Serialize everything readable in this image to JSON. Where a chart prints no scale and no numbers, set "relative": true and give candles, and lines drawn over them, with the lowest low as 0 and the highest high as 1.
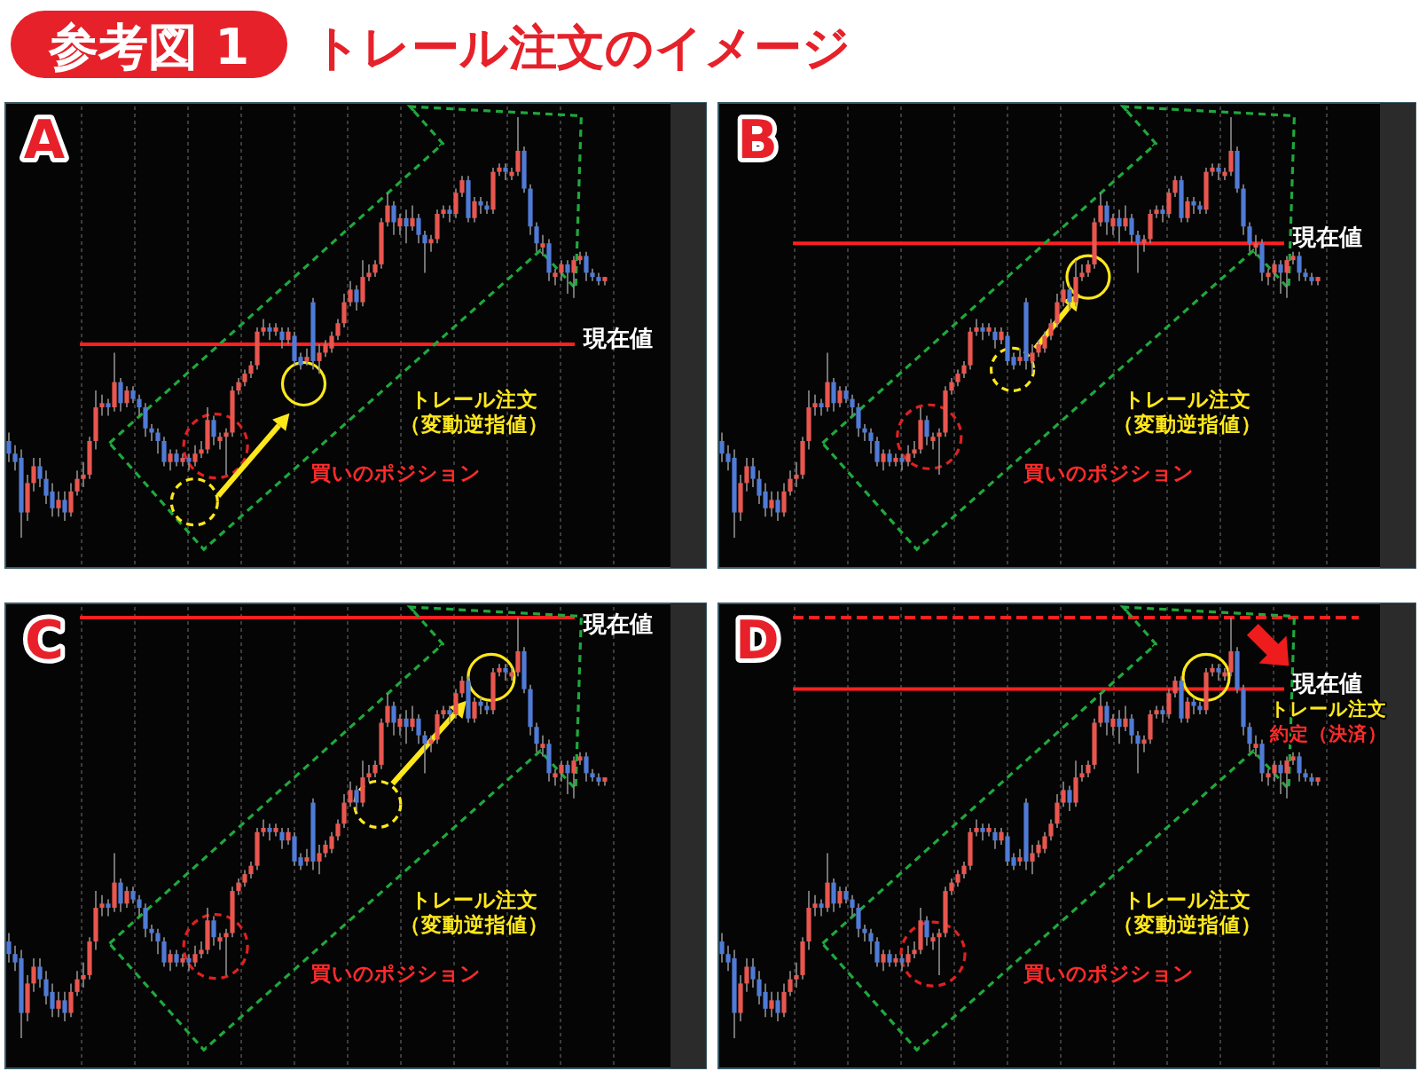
{
  "chart_data": [
    {
      "type": "candlestick",
      "title": "参考図 1",
      "subtitle": "トレール注文のイメージ",
      "relative": true,
      "categories": [
        null,
        null,
        null,
        null,
        null,
        null,
        null,
        null,
        null,
        null,
        null,
        null,
        null,
        null,
        null,
        null,
        null,
        null,
        null,
        null,
        null,
        null,
        null,
        null,
        null,
        null,
        null,
        null,
        null,
        null,
        null,
        null,
        null,
        null,
        null,
        null,
        null,
        null,
        null,
        null,
        null,
        null,
        null,
        null,
        null,
        null,
        null,
        null,
        null,
        null,
        null,
        null,
        null,
        null,
        null,
        null,
        null,
        null,
        null,
        null,
        null,
        null,
        null,
        null,
        null,
        null,
        null,
        null,
        null,
        null,
        null,
        null,
        null,
        null,
        null,
        null,
        null,
        null,
        null,
        null,
        null,
        null,
        null,
        null,
        null,
        null,
        null,
        null,
        null,
        null,
        null,
        null,
        null,
        null,
        null,
        null,
        null
      ],
      "ohlc": [
        [
          0.23,
          0.25,
          0.18,
          0.2
        ],
        [
          0.2,
          0.22,
          0.16,
          0.18
        ],
        [
          0.19,
          0.21,
          0,
          0.06
        ],
        [
          0.06,
          0.15,
          0.04,
          0.13
        ],
        [
          0.13,
          0.19,
          0.11,
          0.17
        ],
        [
          0.17,
          0.19,
          0.12,
          0.14
        ],
        [
          0.14,
          0.16,
          0.08,
          0.1
        ],
        [
          0.11,
          0.13,
          0.05,
          0.07
        ],
        [
          0.07,
          0.11,
          0.05,
          0.09
        ],
        [
          0.09,
          0.11,
          0.04,
          0.06
        ],
        [
          0.06,
          0.13,
          0.05,
          0.11
        ],
        [
          0.11,
          0.16,
          0.1,
          0.14
        ],
        [
          0.14,
          0.18,
          0.12,
          0.15
        ],
        [
          0.15,
          0.24,
          0.14,
          0.23
        ],
        [
          0.23,
          0.35,
          0.21,
          0.31
        ],
        [
          0.31,
          0.34,
          0.29,
          0.32
        ],
        [
          0.32,
          0.33,
          0.29,
          0.31
        ],
        [
          0.31,
          0.44,
          0.3,
          0.37
        ],
        [
          0.37,
          0.38,
          0.3,
          0.32
        ],
        [
          0.32,
          0.36,
          0.31,
          0.35
        ],
        [
          0.35,
          0.36,
          0.32,
          0.33
        ],
        [
          0.33,
          0.34,
          0.29,
          0.31
        ],
        [
          0.31,
          0.32,
          0.24,
          0.26
        ],
        [
          0.26,
          0.27,
          0.23,
          0.25
        ],
        [
          0.25,
          0.26,
          0.2,
          0.23
        ],
        [
          0.23,
          0.24,
          0.17,
          0.18
        ],
        [
          0.18,
          0.21,
          0.16,
          0.2
        ],
        [
          0.2,
          0.21,
          0.17,
          0.18
        ],
        [
          0.18,
          0.2,
          0.17,
          0.19
        ],
        [
          0.19,
          0.2,
          0.16,
          0.18
        ],
        [
          0.18,
          0.22,
          0.17,
          0.2
        ],
        [
          0.2,
          0.23,
          0.19,
          0.21
        ],
        [
          0.21,
          0.31,
          0.2,
          0.28
        ],
        [
          0.28,
          0.29,
          0.22,
          0.24
        ],
        [
          0.23,
          0.25,
          0.21,
          0.24
        ],
        [
          0.24,
          0.26,
          0.15,
          0.25
        ],
        [
          0.25,
          0.36,
          0.24,
          0.35
        ],
        [
          0.35,
          0.38,
          0.34,
          0.37
        ],
        [
          0.37,
          0.4,
          0.36,
          0.39
        ],
        [
          0.39,
          0.42,
          0.38,
          0.41
        ],
        [
          0.41,
          0.5,
          0.4,
          0.49
        ],
        [
          0.49,
          0.52,
          0.48,
          0.5
        ],
        [
          0.5,
          0.51,
          0.47,
          0.49
        ],
        [
          0.49,
          0.51,
          0.48,
          0.5
        ],
        [
          0.49,
          0.5,
          0.45,
          0.47
        ],
        [
          0.47,
          0.5,
          0.46,
          0.49
        ],
        [
          0.48,
          0.49,
          0.41,
          0.42
        ],
        [
          0.43,
          0.44,
          0.4,
          0.41
        ],
        [
          0.42,
          0.45,
          0.41,
          0.43
        ],
        [
          0.56,
          0.57,
          0.4,
          0.42
        ],
        [
          0.42,
          0.46,
          0.39,
          0.44
        ],
        [
          0.44,
          0.47,
          0.43,
          0.46
        ],
        [
          0.45,
          0.49,
          0.44,
          0.48
        ],
        [
          0.48,
          0.52,
          0.47,
          0.51
        ],
        [
          0.51,
          0.58,
          0.5,
          0.56
        ],
        [
          0.56,
          0.61,
          0.55,
          0.59
        ],
        [
          0.59,
          0.6,
          0.54,
          0.56
        ],
        [
          0.56,
          0.66,
          0.55,
          0.62
        ],
        [
          0.62,
          0.65,
          0.61,
          0.63
        ],
        [
          0.63,
          0.66,
          0.62,
          0.65
        ],
        [
          0.65,
          0.76,
          0.64,
          0.75
        ],
        [
          0.75,
          0.82,
          0.74,
          0.79
        ],
        [
          0.79,
          0.8,
          0.72,
          0.75
        ],
        [
          0.74,
          0.77,
          0.72,
          0.76
        ],
        [
          0.76,
          0.78,
          0.7,
          0.74
        ],
        [
          0.74,
          0.79,
          0.73,
          0.76
        ],
        [
          0.76,
          0.77,
          0.7,
          0.72
        ],
        [
          0.72,
          0.73,
          0.63,
          0.7
        ],
        [
          0.7,
          0.72,
          0.68,
          0.71
        ],
        [
          0.71,
          0.78,
          0.7,
          0.77
        ],
        [
          0.77,
          0.79,
          0.76,
          0.78
        ],
        [
          0.78,
          0.79,
          0.75,
          0.77
        ],
        [
          0.77,
          0.83,
          0.76,
          0.82
        ],
        [
          0.82,
          0.86,
          0.81,
          0.85
        ],
        [
          0.85,
          0.86,
          0.75,
          0.76
        ],
        [
          0.76,
          0.81,
          0.75,
          0.8
        ],
        [
          0.8,
          0.81,
          0.77,
          0.79
        ],
        [
          0.79,
          0.8,
          0.77,
          0.78
        ],
        [
          0.78,
          0.88,
          0.77,
          0.87
        ],
        [
          0.87,
          0.89,
          0.86,
          0.88
        ],
        [
          0.88,
          0.89,
          0.85,
          0.87
        ],
        [
          0.86,
          0.88,
          0.85,
          0.87
        ],
        [
          0.87,
          1,
          0.86,
          0.92
        ],
        [
          0.92,
          0.93,
          0.82,
          0.83
        ],
        [
          0.83,
          0.84,
          0.72,
          0.74
        ],
        [
          0.74,
          0.75,
          0.68,
          0.7
        ],
        [
          0.69,
          0.72,
          0.67,
          0.7
        ],
        [
          0.7,
          0.71,
          0.61,
          0.63
        ],
        [
          0.62,
          0.64,
          0.6,
          0.63
        ],
        [
          0.63,
          0.66,
          0.61,
          0.65
        ],
        [
          0.65,
          0.66,
          0.58,
          0.63
        ],
        [
          0.63,
          0.67,
          0.57,
          0.66
        ],
        [
          0.66,
          0.68,
          0.65,
          0.67
        ],
        [
          0.67,
          0.68,
          0.61,
          0.63
        ],
        [
          0.63,
          0.64,
          0.61,
          0.62
        ],
        [
          0.62,
          0.63,
          0.6,
          0.61
        ],
        [
          0.61,
          0.62,
          0.6,
          0.62
        ]
      ],
      "ref_lines": [
        {
          "axis": "y",
          "value": 0.46,
          "label": "現在値",
          "color": "#ff1f1f"
        }
      ],
      "annotations": [
        "A",
        "トレール注文",
        "（変動逆指値）",
        "買いのポジション"
      ]
    },
    {
      "type": "candlestick",
      "relative": true,
      "categories": [
        null,
        null,
        null,
        null,
        null,
        null,
        null,
        null,
        null,
        null,
        null,
        null,
        null,
        null,
        null,
        null,
        null,
        null,
        null,
        null,
        null,
        null,
        null,
        null,
        null,
        null,
        null,
        null,
        null,
        null,
        null,
        null,
        null,
        null,
        null,
        null,
        null,
        null,
        null,
        null,
        null,
        null,
        null,
        null,
        null,
        null,
        null,
        null,
        null,
        null,
        null,
        null,
        null,
        null,
        null,
        null,
        null,
        null,
        null,
        null,
        null,
        null,
        null,
        null,
        null,
        null,
        null,
        null,
        null,
        null,
        null,
        null,
        null,
        null,
        null,
        null,
        null,
        null,
        null,
        null,
        null,
        null,
        null,
        null,
        null,
        null,
        null,
        null,
        null,
        null,
        null,
        null,
        null,
        null,
        null,
        null,
        null
      ],
      "ohlc": [
        [
          0.23,
          0.25,
          0.18,
          0.2
        ],
        [
          0.2,
          0.22,
          0.16,
          0.18
        ],
        [
          0.19,
          0.21,
          0,
          0.06
        ],
        [
          0.06,
          0.15,
          0.04,
          0.13
        ],
        [
          0.13,
          0.19,
          0.11,
          0.17
        ],
        [
          0.17,
          0.19,
          0.12,
          0.14
        ],
        [
          0.14,
          0.16,
          0.08,
          0.1
        ],
        [
          0.11,
          0.13,
          0.05,
          0.07
        ],
        [
          0.07,
          0.11,
          0.05,
          0.09
        ],
        [
          0.09,
          0.11,
          0.04,
          0.06
        ],
        [
          0.06,
          0.13,
          0.05,
          0.11
        ],
        [
          0.11,
          0.16,
          0.1,
          0.14
        ],
        [
          0.14,
          0.18,
          0.12,
          0.15
        ],
        [
          0.15,
          0.24,
          0.14,
          0.23
        ],
        [
          0.23,
          0.35,
          0.21,
          0.31
        ],
        [
          0.31,
          0.34,
          0.29,
          0.32
        ],
        [
          0.32,
          0.33,
          0.29,
          0.31
        ],
        [
          0.31,
          0.44,
          0.3,
          0.37
        ],
        [
          0.37,
          0.38,
          0.3,
          0.32
        ],
        [
          0.32,
          0.36,
          0.31,
          0.35
        ],
        [
          0.35,
          0.36,
          0.32,
          0.33
        ],
        [
          0.33,
          0.34,
          0.29,
          0.31
        ],
        [
          0.31,
          0.32,
          0.24,
          0.26
        ],
        [
          0.26,
          0.27,
          0.23,
          0.25
        ],
        [
          0.25,
          0.26,
          0.2,
          0.23
        ],
        [
          0.23,
          0.24,
          0.17,
          0.18
        ],
        [
          0.18,
          0.21,
          0.16,
          0.2
        ],
        [
          0.2,
          0.21,
          0.17,
          0.18
        ],
        [
          0.18,
          0.2,
          0.17,
          0.19
        ],
        [
          0.19,
          0.2,
          0.16,
          0.18
        ],
        [
          0.18,
          0.22,
          0.17,
          0.2
        ],
        [
          0.2,
          0.23,
          0.19,
          0.21
        ],
        [
          0.21,
          0.31,
          0.2,
          0.28
        ],
        [
          0.28,
          0.29,
          0.22,
          0.24
        ],
        [
          0.23,
          0.25,
          0.21,
          0.24
        ],
        [
          0.24,
          0.26,
          0.15,
          0.25
        ],
        [
          0.25,
          0.36,
          0.24,
          0.35
        ],
        [
          0.35,
          0.38,
          0.34,
          0.37
        ],
        [
          0.37,
          0.4,
          0.36,
          0.39
        ],
        [
          0.39,
          0.42,
          0.38,
          0.41
        ],
        [
          0.41,
          0.5,
          0.4,
          0.49
        ],
        [
          0.49,
          0.52,
          0.48,
          0.5
        ],
        [
          0.5,
          0.51,
          0.47,
          0.49
        ],
        [
          0.49,
          0.51,
          0.48,
          0.5
        ],
        [
          0.49,
          0.5,
          0.45,
          0.47
        ],
        [
          0.47,
          0.5,
          0.46,
          0.49
        ],
        [
          0.48,
          0.49,
          0.41,
          0.42
        ],
        [
          0.43,
          0.44,
          0.4,
          0.41
        ],
        [
          0.42,
          0.45,
          0.41,
          0.43
        ],
        [
          0.56,
          0.57,
          0.4,
          0.42
        ],
        [
          0.42,
          0.46,
          0.39,
          0.44
        ],
        [
          0.44,
          0.47,
          0.43,
          0.46
        ],
        [
          0.45,
          0.49,
          0.44,
          0.48
        ],
        [
          0.48,
          0.52,
          0.47,
          0.51
        ],
        [
          0.51,
          0.58,
          0.5,
          0.56
        ],
        [
          0.56,
          0.61,
          0.55,
          0.59
        ],
        [
          0.59,
          0.6,
          0.54,
          0.56
        ],
        [
          0.56,
          0.66,
          0.55,
          0.62
        ],
        [
          0.62,
          0.65,
          0.61,
          0.63
        ],
        [
          0.63,
          0.66,
          0.62,
          0.65
        ],
        [
          0.65,
          0.76,
          0.64,
          0.75
        ],
        [
          0.75,
          0.82,
          0.74,
          0.79
        ],
        [
          0.79,
          0.8,
          0.72,
          0.75
        ],
        [
          0.74,
          0.77,
          0.72,
          0.76
        ],
        [
          0.76,
          0.78,
          0.7,
          0.74
        ],
        [
          0.74,
          0.79,
          0.73,
          0.76
        ],
        [
          0.76,
          0.77,
          0.7,
          0.72
        ],
        [
          0.72,
          0.73,
          0.63,
          0.7
        ],
        [
          0.7,
          0.72,
          0.68,
          0.71
        ],
        [
          0.71,
          0.78,
          0.7,
          0.77
        ],
        [
          0.77,
          0.79,
          0.76,
          0.78
        ],
        [
          0.78,
          0.79,
          0.75,
          0.77
        ],
        [
          0.77,
          0.83,
          0.76,
          0.82
        ],
        [
          0.82,
          0.86,
          0.81,
          0.85
        ],
        [
          0.85,
          0.86,
          0.75,
          0.76
        ],
        [
          0.76,
          0.81,
          0.75,
          0.8
        ],
        [
          0.8,
          0.81,
          0.77,
          0.79
        ],
        [
          0.79,
          0.8,
          0.77,
          0.78
        ],
        [
          0.78,
          0.88,
          0.77,
          0.87
        ],
        [
          0.87,
          0.89,
          0.86,
          0.88
        ],
        [
          0.88,
          0.89,
          0.85,
          0.87
        ],
        [
          0.86,
          0.88,
          0.85,
          0.87
        ],
        [
          0.87,
          1,
          0.86,
          0.92
        ],
        [
          0.92,
          0.93,
          0.82,
          0.83
        ],
        [
          0.83,
          0.84,
          0.72,
          0.74
        ],
        [
          0.74,
          0.75,
          0.68,
          0.7
        ],
        [
          0.69,
          0.72,
          0.67,
          0.7
        ],
        [
          0.7,
          0.71,
          0.61,
          0.63
        ],
        [
          0.62,
          0.64,
          0.6,
          0.63
        ],
        [
          0.63,
          0.66,
          0.61,
          0.65
        ],
        [
          0.65,
          0.66,
          0.58,
          0.63
        ],
        [
          0.63,
          0.67,
          0.57,
          0.66
        ],
        [
          0.66,
          0.68,
          0.65,
          0.67
        ],
        [
          0.67,
          0.68,
          0.61,
          0.63
        ],
        [
          0.63,
          0.64,
          0.61,
          0.62
        ],
        [
          0.62,
          0.63,
          0.6,
          0.61
        ],
        [
          0.61,
          0.62,
          0.6,
          0.62
        ]
      ],
      "ref_lines": [
        {
          "axis": "y",
          "value": 0.7,
          "label": "現在値",
          "color": "#ff1f1f"
        }
      ],
      "annotations": [
        "B",
        "トレール注文",
        "（変動逆指値）",
        "買いのポジション"
      ]
    },
    {
      "type": "candlestick",
      "relative": true,
      "categories": [
        null,
        null,
        null,
        null,
        null,
        null,
        null,
        null,
        null,
        null,
        null,
        null,
        null,
        null,
        null,
        null,
        null,
        null,
        null,
        null,
        null,
        null,
        null,
        null,
        null,
        null,
        null,
        null,
        null,
        null,
        null,
        null,
        null,
        null,
        null,
        null,
        null,
        null,
        null,
        null,
        null,
        null,
        null,
        null,
        null,
        null,
        null,
        null,
        null,
        null,
        null,
        null,
        null,
        null,
        null,
        null,
        null,
        null,
        null,
        null,
        null,
        null,
        null,
        null,
        null,
        null,
        null,
        null,
        null,
        null,
        null,
        null,
        null,
        null,
        null,
        null,
        null,
        null,
        null,
        null,
        null,
        null,
        null,
        null,
        null,
        null,
        null,
        null,
        null,
        null,
        null,
        null,
        null,
        null,
        null,
        null,
        null
      ],
      "ohlc": [
        [
          0.23,
          0.25,
          0.18,
          0.2
        ],
        [
          0.2,
          0.22,
          0.16,
          0.18
        ],
        [
          0.19,
          0.21,
          0,
          0.06
        ],
        [
          0.06,
          0.15,
          0.04,
          0.13
        ],
        [
          0.13,
          0.19,
          0.11,
          0.17
        ],
        [
          0.17,
          0.19,
          0.12,
          0.14
        ],
        [
          0.14,
          0.16,
          0.08,
          0.1
        ],
        [
          0.11,
          0.13,
          0.05,
          0.07
        ],
        [
          0.07,
          0.11,
          0.05,
          0.09
        ],
        [
          0.09,
          0.11,
          0.04,
          0.06
        ],
        [
          0.06,
          0.13,
          0.05,
          0.11
        ],
        [
          0.11,
          0.16,
          0.1,
          0.14
        ],
        [
          0.14,
          0.18,
          0.12,
          0.15
        ],
        [
          0.15,
          0.24,
          0.14,
          0.23
        ],
        [
          0.23,
          0.35,
          0.21,
          0.31
        ],
        [
          0.31,
          0.34,
          0.29,
          0.32
        ],
        [
          0.32,
          0.33,
          0.29,
          0.31
        ],
        [
          0.31,
          0.44,
          0.3,
          0.37
        ],
        [
          0.37,
          0.38,
          0.3,
          0.32
        ],
        [
          0.32,
          0.36,
          0.31,
          0.35
        ],
        [
          0.35,
          0.36,
          0.32,
          0.33
        ],
        [
          0.33,
          0.34,
          0.29,
          0.31
        ],
        [
          0.31,
          0.32,
          0.24,
          0.26
        ],
        [
          0.26,
          0.27,
          0.23,
          0.25
        ],
        [
          0.25,
          0.26,
          0.2,
          0.23
        ],
        [
          0.23,
          0.24,
          0.17,
          0.18
        ],
        [
          0.18,
          0.21,
          0.16,
          0.2
        ],
        [
          0.2,
          0.21,
          0.17,
          0.18
        ],
        [
          0.18,
          0.2,
          0.17,
          0.19
        ],
        [
          0.19,
          0.2,
          0.16,
          0.18
        ],
        [
          0.18,
          0.22,
          0.17,
          0.2
        ],
        [
          0.2,
          0.23,
          0.19,
          0.21
        ],
        [
          0.21,
          0.31,
          0.2,
          0.28
        ],
        [
          0.28,
          0.29,
          0.22,
          0.24
        ],
        [
          0.23,
          0.25,
          0.21,
          0.24
        ],
        [
          0.24,
          0.26,
          0.15,
          0.25
        ],
        [
          0.25,
          0.36,
          0.24,
          0.35
        ],
        [
          0.35,
          0.38,
          0.34,
          0.37
        ],
        [
          0.37,
          0.4,
          0.36,
          0.39
        ],
        [
          0.39,
          0.42,
          0.38,
          0.41
        ],
        [
          0.41,
          0.5,
          0.4,
          0.49
        ],
        [
          0.49,
          0.52,
          0.48,
          0.5
        ],
        [
          0.5,
          0.51,
          0.47,
          0.49
        ],
        [
          0.49,
          0.51,
          0.48,
          0.5
        ],
        [
          0.49,
          0.5,
          0.45,
          0.47
        ],
        [
          0.47,
          0.5,
          0.46,
          0.49
        ],
        [
          0.48,
          0.49,
          0.41,
          0.42
        ],
        [
          0.43,
          0.44,
          0.4,
          0.41
        ],
        [
          0.42,
          0.45,
          0.41,
          0.43
        ],
        [
          0.56,
          0.57,
          0.4,
          0.42
        ],
        [
          0.42,
          0.46,
          0.39,
          0.44
        ],
        [
          0.44,
          0.47,
          0.43,
          0.46
        ],
        [
          0.45,
          0.49,
          0.44,
          0.48
        ],
        [
          0.48,
          0.52,
          0.47,
          0.51
        ],
        [
          0.51,
          0.58,
          0.5,
          0.56
        ],
        [
          0.56,
          0.61,
          0.55,
          0.59
        ],
        [
          0.59,
          0.6,
          0.54,
          0.56
        ],
        [
          0.56,
          0.66,
          0.55,
          0.62
        ],
        [
          0.62,
          0.65,
          0.61,
          0.63
        ],
        [
          0.63,
          0.66,
          0.62,
          0.65
        ],
        [
          0.65,
          0.76,
          0.64,
          0.75
        ],
        [
          0.75,
          0.82,
          0.74,
          0.79
        ],
        [
          0.79,
          0.8,
          0.72,
          0.75
        ],
        [
          0.74,
          0.77,
          0.72,
          0.76
        ],
        [
          0.76,
          0.78,
          0.7,
          0.74
        ],
        [
          0.74,
          0.79,
          0.73,
          0.76
        ],
        [
          0.76,
          0.77,
          0.7,
          0.72
        ],
        [
          0.72,
          0.73,
          0.63,
          0.7
        ],
        [
          0.7,
          0.72,
          0.68,
          0.71
        ],
        [
          0.71,
          0.78,
          0.7,
          0.77
        ],
        [
          0.77,
          0.79,
          0.76,
          0.78
        ],
        [
          0.78,
          0.79,
          0.75,
          0.77
        ],
        [
          0.77,
          0.83,
          0.76,
          0.82
        ],
        [
          0.82,
          0.86,
          0.81,
          0.85
        ],
        [
          0.85,
          0.86,
          0.75,
          0.76
        ],
        [
          0.76,
          0.81,
          0.75,
          0.8
        ],
        [
          0.8,
          0.81,
          0.77,
          0.79
        ],
        [
          0.79,
          0.8,
          0.77,
          0.78
        ],
        [
          0.78,
          0.88,
          0.77,
          0.87
        ],
        [
          0.87,
          0.89,
          0.86,
          0.88
        ],
        [
          0.88,
          0.89,
          0.85,
          0.87
        ],
        [
          0.86,
          0.88,
          0.85,
          0.87
        ],
        [
          0.87,
          1,
          0.86,
          0.92
        ],
        [
          0.92,
          0.93,
          0.82,
          0.83
        ],
        [
          0.83,
          0.84,
          0.72,
          0.74
        ],
        [
          0.74,
          0.75,
          0.68,
          0.7
        ],
        [
          0.69,
          0.72,
          0.67,
          0.7
        ],
        [
          0.7,
          0.71,
          0.61,
          0.63
        ],
        [
          0.62,
          0.64,
          0.6,
          0.63
        ],
        [
          0.63,
          0.66,
          0.61,
          0.65
        ],
        [
          0.65,
          0.66,
          0.58,
          0.63
        ],
        [
          0.63,
          0.67,
          0.57,
          0.66
        ],
        [
          0.66,
          0.68,
          0.65,
          0.67
        ],
        [
          0.67,
          0.68,
          0.61,
          0.63
        ],
        [
          0.63,
          0.64,
          0.61,
          0.62
        ],
        [
          0.62,
          0.63,
          0.6,
          0.61
        ],
        [
          0.61,
          0.62,
          0.6,
          0.62
        ]
      ],
      "ref_lines": [
        {
          "axis": "y",
          "value": 1,
          "label": "現在値",
          "color": "#ff1f1f"
        }
      ],
      "annotations": [
        "C",
        "トレール注文",
        "（変動逆指値）",
        "買いのポジション"
      ]
    },
    {
      "type": "candlestick",
      "relative": true,
      "categories": [
        null,
        null,
        null,
        null,
        null,
        null,
        null,
        null,
        null,
        null,
        null,
        null,
        null,
        null,
        null,
        null,
        null,
        null,
        null,
        null,
        null,
        null,
        null,
        null,
        null,
        null,
        null,
        null,
        null,
        null,
        null,
        null,
        null,
        null,
        null,
        null,
        null,
        null,
        null,
        null,
        null,
        null,
        null,
        null,
        null,
        null,
        null,
        null,
        null,
        null,
        null,
        null,
        null,
        null,
        null,
        null,
        null,
        null,
        null,
        null,
        null,
        null,
        null,
        null,
        null,
        null,
        null,
        null,
        null,
        null,
        null,
        null,
        null,
        null,
        null,
        null,
        null,
        null,
        null,
        null,
        null,
        null,
        null,
        null,
        null,
        null,
        null,
        null,
        null,
        null,
        null,
        null,
        null,
        null,
        null,
        null,
        null
      ],
      "ohlc": [
        [
          0.23,
          0.25,
          0.18,
          0.2
        ],
        [
          0.2,
          0.22,
          0.16,
          0.18
        ],
        [
          0.19,
          0.21,
          0,
          0.06
        ],
        [
          0.06,
          0.15,
          0.04,
          0.13
        ],
        [
          0.13,
          0.19,
          0.11,
          0.17
        ],
        [
          0.17,
          0.19,
          0.12,
          0.14
        ],
        [
          0.14,
          0.16,
          0.08,
          0.1
        ],
        [
          0.11,
          0.13,
          0.05,
          0.07
        ],
        [
          0.07,
          0.11,
          0.05,
          0.09
        ],
        [
          0.09,
          0.11,
          0.04,
          0.06
        ],
        [
          0.06,
          0.13,
          0.05,
          0.11
        ],
        [
          0.11,
          0.16,
          0.1,
          0.14
        ],
        [
          0.14,
          0.18,
          0.12,
          0.15
        ],
        [
          0.15,
          0.24,
          0.14,
          0.23
        ],
        [
          0.23,
          0.35,
          0.21,
          0.31
        ],
        [
          0.31,
          0.34,
          0.29,
          0.32
        ],
        [
          0.32,
          0.33,
          0.29,
          0.31
        ],
        [
          0.31,
          0.44,
          0.3,
          0.37
        ],
        [
          0.37,
          0.38,
          0.3,
          0.32
        ],
        [
          0.32,
          0.36,
          0.31,
          0.35
        ],
        [
          0.35,
          0.36,
          0.32,
          0.33
        ],
        [
          0.33,
          0.34,
          0.29,
          0.31
        ],
        [
          0.31,
          0.32,
          0.24,
          0.26
        ],
        [
          0.26,
          0.27,
          0.23,
          0.25
        ],
        [
          0.25,
          0.26,
          0.2,
          0.23
        ],
        [
          0.23,
          0.24,
          0.17,
          0.18
        ],
        [
          0.18,
          0.21,
          0.16,
          0.2
        ],
        [
          0.2,
          0.21,
          0.17,
          0.18
        ],
        [
          0.18,
          0.2,
          0.17,
          0.19
        ],
        [
          0.19,
          0.2,
          0.16,
          0.18
        ],
        [
          0.18,
          0.22,
          0.17,
          0.2
        ],
        [
          0.2,
          0.23,
          0.19,
          0.21
        ],
        [
          0.21,
          0.31,
          0.2,
          0.28
        ],
        [
          0.28,
          0.29,
          0.22,
          0.24
        ],
        [
          0.23,
          0.25,
          0.21,
          0.24
        ],
        [
          0.24,
          0.26,
          0.15,
          0.25
        ],
        [
          0.25,
          0.36,
          0.24,
          0.35
        ],
        [
          0.35,
          0.38,
          0.34,
          0.37
        ],
        [
          0.37,
          0.4,
          0.36,
          0.39
        ],
        [
          0.39,
          0.42,
          0.38,
          0.41
        ],
        [
          0.41,
          0.5,
          0.4,
          0.49
        ],
        [
          0.49,
          0.52,
          0.48,
          0.5
        ],
        [
          0.5,
          0.51,
          0.47,
          0.49
        ],
        [
          0.49,
          0.51,
          0.48,
          0.5
        ],
        [
          0.49,
          0.5,
          0.45,
          0.47
        ],
        [
          0.47,
          0.5,
          0.46,
          0.49
        ],
        [
          0.48,
          0.49,
          0.41,
          0.42
        ],
        [
          0.43,
          0.44,
          0.4,
          0.41
        ],
        [
          0.42,
          0.45,
          0.41,
          0.43
        ],
        [
          0.56,
          0.57,
          0.4,
          0.42
        ],
        [
          0.42,
          0.46,
          0.39,
          0.44
        ],
        [
          0.44,
          0.47,
          0.43,
          0.46
        ],
        [
          0.45,
          0.49,
          0.44,
          0.48
        ],
        [
          0.48,
          0.52,
          0.47,
          0.51
        ],
        [
          0.51,
          0.58,
          0.5,
          0.56
        ],
        [
          0.56,
          0.61,
          0.55,
          0.59
        ],
        [
          0.59,
          0.6,
          0.54,
          0.56
        ],
        [
          0.56,
          0.66,
          0.55,
          0.62
        ],
        [
          0.62,
          0.65,
          0.61,
          0.63
        ],
        [
          0.63,
          0.66,
          0.62,
          0.65
        ],
        [
          0.65,
          0.76,
          0.64,
          0.75
        ],
        [
          0.75,
          0.82,
          0.74,
          0.79
        ],
        [
          0.79,
          0.8,
          0.72,
          0.75
        ],
        [
          0.74,
          0.77,
          0.72,
          0.76
        ],
        [
          0.76,
          0.78,
          0.7,
          0.74
        ],
        [
          0.74,
          0.79,
          0.73,
          0.76
        ],
        [
          0.76,
          0.77,
          0.7,
          0.72
        ],
        [
          0.72,
          0.73,
          0.63,
          0.7
        ],
        [
          0.7,
          0.72,
          0.68,
          0.71
        ],
        [
          0.71,
          0.78,
          0.7,
          0.77
        ],
        [
          0.77,
          0.79,
          0.76,
          0.78
        ],
        [
          0.78,
          0.79,
          0.75,
          0.77
        ],
        [
          0.77,
          0.83,
          0.76,
          0.82
        ],
        [
          0.82,
          0.86,
          0.81,
          0.85
        ],
        [
          0.85,
          0.86,
          0.75,
          0.76
        ],
        [
          0.76,
          0.81,
          0.75,
          0.8
        ],
        [
          0.8,
          0.81,
          0.77,
          0.79
        ],
        [
          0.79,
          0.8,
          0.77,
          0.78
        ],
        [
          0.78,
          0.88,
          0.77,
          0.87
        ],
        [
          0.87,
          0.89,
          0.86,
          0.88
        ],
        [
          0.88,
          0.89,
          0.85,
          0.87
        ],
        [
          0.86,
          0.88,
          0.85,
          0.87
        ],
        [
          0.87,
          1,
          0.86,
          0.92
        ],
        [
          0.92,
          0.93,
          0.82,
          0.83
        ],
        [
          0.83,
          0.84,
          0.72,
          0.74
        ],
        [
          0.74,
          0.75,
          0.68,
          0.7
        ],
        [
          0.69,
          0.72,
          0.67,
          0.7
        ],
        [
          0.7,
          0.71,
          0.61,
          0.63
        ],
        [
          0.62,
          0.64,
          0.6,
          0.63
        ],
        [
          0.63,
          0.66,
          0.61,
          0.65
        ],
        [
          0.65,
          0.66,
          0.58,
          0.63
        ],
        [
          0.63,
          0.67,
          0.57,
          0.66
        ],
        [
          0.66,
          0.68,
          0.65,
          0.67
        ],
        [
          0.67,
          0.68,
          0.61,
          0.63
        ],
        [
          0.63,
          0.64,
          0.61,
          0.62
        ],
        [
          0.62,
          0.63,
          0.6,
          0.61
        ],
        [
          0.61,
          0.62,
          0.6,
          0.62
        ]
      ],
      "ref_lines": [
        {
          "axis": "y",
          "value": 0.83,
          "label": "現在値",
          "color": "#ff1f1f"
        },
        {
          "axis": "y",
          "value": 1,
          "color": "#ff1f1f",
          "line_style": "dashed"
        }
      ],
      "annotations": [
        "D",
        "トレール注文",
        "（変動逆指値）",
        "買いのポジション",
        "トレール注文",
        "約定（決済）"
      ]
    }
  ]
}
